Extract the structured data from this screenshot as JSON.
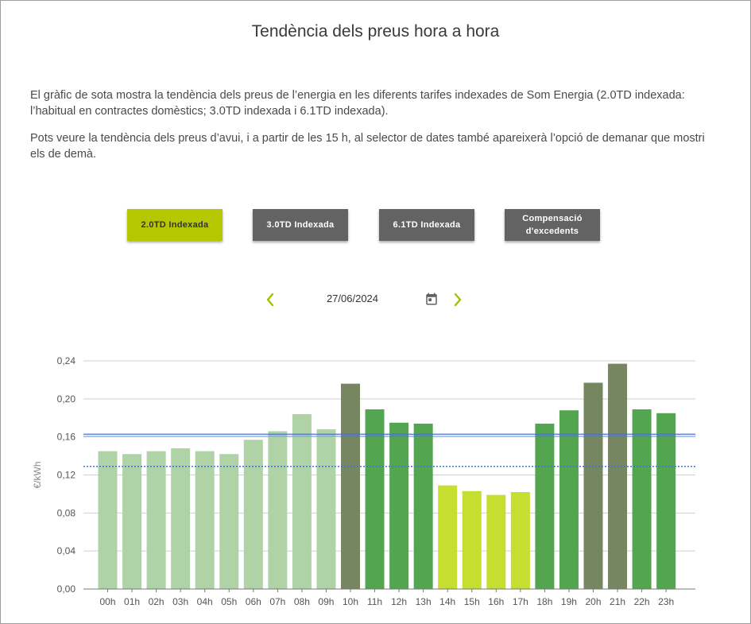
{
  "page": {
    "title": "Tendència dels preus hora a hora",
    "intro_1": "El gràfic de sota mostra la tendència dels preus de l’energia en les diferents tarifes indexades de Som Energia (2.0TD indexada: l’habitual en contractes domèstics; 3.0TD indexada i 6.1TD indexada).",
    "intro_2": "Pots veure la tendència dels preus d’avui, i a partir de les 15 h, al selector de dates també apareixerà l’opció de demanar que mostri els de demà."
  },
  "tabs": [
    {
      "label": "2.0TD Indexada",
      "active": true
    },
    {
      "label": "3.0TD Indexada",
      "active": false
    },
    {
      "label": "6.1TD Indexada",
      "active": false
    },
    {
      "label": "Compensació d'excedents",
      "active": false
    }
  ],
  "date_selector": {
    "date": "27/06/2024",
    "prev_icon": "chevron-left-icon",
    "next_icon": "chevron-right-icon",
    "calendar_icon": "calendar-icon"
  },
  "colors": {
    "active_tab": "#b5c700",
    "inactive_tab": "#636363",
    "arrow": "#a4c100",
    "bar_light": "#afd3a6",
    "bar_medium": "#53a550",
    "bar_dark": "#758660",
    "bar_lime": "#c5de2f",
    "avg_line": "#4673c6",
    "grid": "#cfcfcf"
  },
  "chart_data": {
    "type": "bar",
    "ylabel": "€/kWh",
    "ylim": [
      0,
      0.24
    ],
    "yticks": [
      "0,00",
      "0,04",
      "0,08",
      "0,12",
      "0,16",
      "0,20",
      "0,24"
    ],
    "grid": true,
    "categories": [
      "00h",
      "01h",
      "02h",
      "03h",
      "04h",
      "05h",
      "06h",
      "07h",
      "08h",
      "09h",
      "10h",
      "11h",
      "12h",
      "13h",
      "14h",
      "15h",
      "16h",
      "17h",
      "18h",
      "19h",
      "20h",
      "21h",
      "22h",
      "23h"
    ],
    "values": [
      0.145,
      0.142,
      0.145,
      0.148,
      0.145,
      0.142,
      0.157,
      0.166,
      0.184,
      0.168,
      0.216,
      0.189,
      0.175,
      0.174,
      0.109,
      0.103,
      0.099,
      0.102,
      0.174,
      0.188,
      0.217,
      0.237,
      0.189,
      0.185
    ],
    "bar_colors": [
      "light",
      "light",
      "light",
      "light",
      "light",
      "light",
      "light",
      "light",
      "light",
      "light",
      "dark",
      "medium",
      "medium",
      "medium",
      "lime",
      "lime",
      "lime",
      "lime",
      "medium",
      "medium",
      "dark",
      "dark",
      "medium",
      "medium"
    ],
    "reference_lines": [
      {
        "value": 0.162,
        "style": "solid"
      },
      {
        "value": 0.129,
        "style": "dotted"
      }
    ]
  }
}
